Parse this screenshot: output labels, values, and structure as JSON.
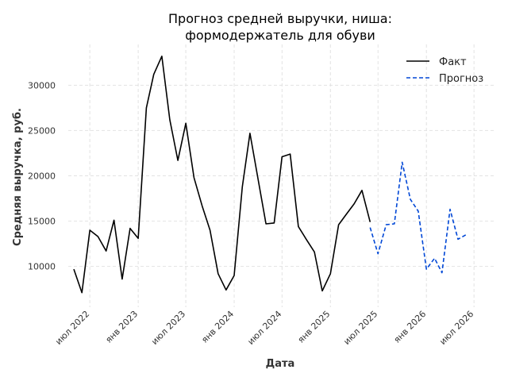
{
  "chart_data": {
    "type": "line",
    "title": [
      "Прогноз средней выручки, ниша:",
      "формодержатель для обуви"
    ],
    "xlabel": "Дата",
    "ylabel": "Средняя выручка, руб.",
    "ylim": [
      5500,
      34500
    ],
    "xlim": [
      "2022-04-10",
      "2026-09-20"
    ],
    "y_ticks": [
      10000,
      15000,
      20000,
      25000,
      30000
    ],
    "x_ticks": [
      {
        "date": "2022-07-01",
        "label": "июл 2022"
      },
      {
        "date": "2023-01-01",
        "label": "янв 2023"
      },
      {
        "date": "2023-07-01",
        "label": "июл 2023"
      },
      {
        "date": "2024-01-01",
        "label": "янв 2024"
      },
      {
        "date": "2024-07-01",
        "label": "июл 2024"
      },
      {
        "date": "2025-01-01",
        "label": "янв 2025"
      },
      {
        "date": "2025-07-01",
        "label": "июл 2025"
      },
      {
        "date": "2026-01-01",
        "label": "янв 2026"
      },
      {
        "date": "2026-07-01",
        "label": "июл 2026"
      }
    ],
    "grid": true,
    "legend_position": "top-right",
    "series": [
      {
        "name": "Факт",
        "color": "#000000",
        "style": "solid",
        "points": [
          [
            "2022-05-01",
            9700
          ],
          [
            "2022-06-01",
            7100
          ],
          [
            "2022-07-01",
            14000
          ],
          [
            "2022-08-01",
            13300
          ],
          [
            "2022-09-01",
            11700
          ],
          [
            "2022-10-01",
            15100
          ],
          [
            "2022-11-01",
            8600
          ],
          [
            "2022-12-01",
            14200
          ],
          [
            "2023-01-01",
            13100
          ],
          [
            "2023-02-01",
            27500
          ],
          [
            "2023-03-01",
            31200
          ],
          [
            "2023-04-01",
            33200
          ],
          [
            "2023-05-01",
            26200
          ],
          [
            "2023-06-01",
            21700
          ],
          [
            "2023-07-01",
            25800
          ],
          [
            "2023-08-01",
            19800
          ],
          [
            "2023-09-01",
            16700
          ],
          [
            "2023-10-01",
            14000
          ],
          [
            "2023-11-01",
            9200
          ],
          [
            "2023-12-01",
            7400
          ],
          [
            "2024-01-01",
            9000
          ],
          [
            "2024-02-01",
            18800
          ],
          [
            "2024-03-01",
            24700
          ],
          [
            "2024-04-01",
            19600
          ],
          [
            "2024-05-01",
            14700
          ],
          [
            "2024-06-01",
            14800
          ],
          [
            "2024-07-01",
            22100
          ],
          [
            "2024-08-01",
            22400
          ],
          [
            "2024-09-01",
            14400
          ],
          [
            "2024-10-01",
            13000
          ],
          [
            "2024-11-01",
            11600
          ],
          [
            "2024-12-01",
            7300
          ],
          [
            "2025-01-01",
            9200
          ],
          [
            "2025-02-01",
            14600
          ],
          [
            "2025-03-01",
            15700
          ],
          [
            "2025-04-01",
            16900
          ],
          [
            "2025-05-01",
            18400
          ],
          [
            "2025-06-01",
            14900
          ]
        ]
      },
      {
        "name": "Прогноз",
        "color": "#0047d6",
        "style": "dashed",
        "points": [
          [
            "2025-06-01",
            14300
          ],
          [
            "2025-07-01",
            11400
          ],
          [
            "2025-08-01",
            14600
          ],
          [
            "2025-09-01",
            14700
          ],
          [
            "2025-10-01",
            21500
          ],
          [
            "2025-11-01",
            17400
          ],
          [
            "2025-12-01",
            16100
          ],
          [
            "2026-01-01",
            9700
          ],
          [
            "2026-02-01",
            10900
          ],
          [
            "2026-03-01",
            9300
          ],
          [
            "2026-04-01",
            16300
          ],
          [
            "2026-05-01",
            13000
          ],
          [
            "2026-06-01",
            13500
          ]
        ]
      }
    ]
  }
}
